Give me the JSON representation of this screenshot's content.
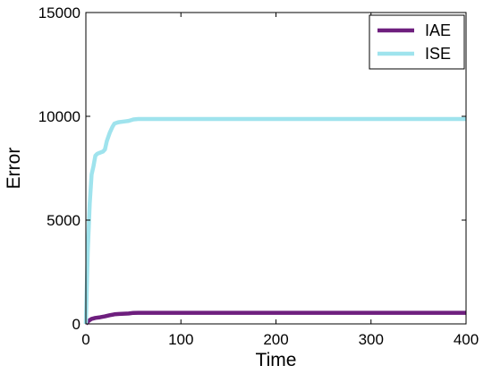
{
  "chart_data": {
    "type": "line",
    "title": "",
    "xlabel": "Time",
    "ylabel": "Error",
    "xlim": [
      0,
      400
    ],
    "ylim": [
      0,
      15000
    ],
    "x_ticks": [
      0,
      100,
      200,
      300,
      400
    ],
    "y_ticks": [
      0,
      5000,
      10000,
      15000
    ],
    "x_tick_labels": [
      "0",
      "100",
      "200",
      "300",
      "400"
    ],
    "y_tick_labels": [
      "0",
      "5000",
      "10000",
      "15000"
    ],
    "grid": false,
    "legend_position": "top-right",
    "series": [
      {
        "name": "IAE",
        "color": "#6e1f7e",
        "x": [
          0,
          3,
          6,
          10,
          15,
          20,
          25,
          30,
          35,
          40,
          45,
          50,
          55,
          60,
          100,
          200,
          300,
          400
        ],
        "y": [
          0,
          150,
          240,
          290,
          320,
          360,
          420,
          460,
          480,
          490,
          500,
          530,
          535,
          535,
          535,
          535,
          535,
          535
        ]
      },
      {
        "name": "ISE",
        "color": "#9fe3ed",
        "x": [
          0,
          2,
          4,
          6,
          8,
          10,
          12,
          15,
          18,
          20,
          22,
          25,
          28,
          30,
          33,
          35,
          40,
          45,
          50,
          55,
          60,
          100,
          200,
          300,
          400
        ],
        "y": [
          0,
          3500,
          5800,
          7200,
          7600,
          8100,
          8200,
          8250,
          8300,
          8400,
          8800,
          9200,
          9500,
          9650,
          9700,
          9720,
          9750,
          9780,
          9850,
          9870,
          9870,
          9870,
          9870,
          9870,
          9870
        ]
      }
    ]
  }
}
